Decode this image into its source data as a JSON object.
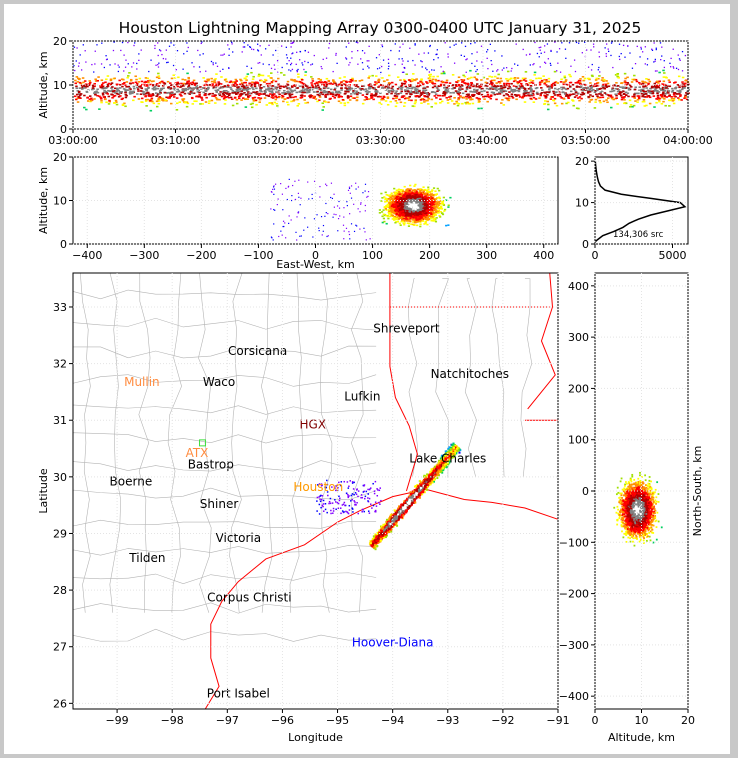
{
  "title": "Houston Lightning Mapping Array 0300-0400 UTC January 31, 2025",
  "colors": {
    "ramp": [
      "#8000ff",
      "#0000ff",
      "#00a0ff",
      "#00d060",
      "#a0e000",
      "#ffff00",
      "#ff9000",
      "#ff0000",
      "#b00000",
      "#808080",
      "#ffffff"
    ],
    "coast": "#ff0000",
    "county": "#b4b4b4",
    "profile": "#000000"
  },
  "panels": {
    "time_height": {
      "ylabel": "Altitude, km",
      "yticks": [
        "0",
        "10",
        "20"
      ],
      "xticks": [
        "03:00:00",
        "03:10:00",
        "03:20:00",
        "03:30:00",
        "03:40:00",
        "03:50:00",
        "04:00:00"
      ],
      "xlim_minutes": [
        0,
        60
      ],
      "ylim_km": [
        0,
        20
      ]
    },
    "ew_height": {
      "ylabel": "Altitude, km",
      "xlabel": "East-West, km",
      "xticks": [
        "−400",
        "−300",
        "−200",
        "−100",
        "0",
        "100",
        "200",
        "300",
        "400"
      ],
      "yticks": [
        "0",
        "10",
        "20"
      ],
      "xlim_km": [
        -425,
        425
      ],
      "ylim_km": [
        0,
        20
      ]
    },
    "histogram": {
      "xticks": [
        "0",
        "5000"
      ],
      "yticks": [
        "0",
        "10",
        "20"
      ],
      "xlim": [
        0,
        6000
      ],
      "ylim_km": [
        0,
        21
      ],
      "label": "134,306 src"
    },
    "plan": {
      "xlabel": "Longitude",
      "ylabel": "Latitude",
      "xticks": [
        "−99",
        "−98",
        "−97",
        "−96",
        "−95",
        "−94",
        "−93",
        "−92",
        "−91"
      ],
      "yticks": [
        "26",
        "27",
        "28",
        "29",
        "30",
        "31",
        "32",
        "33"
      ],
      "xlim_deg": [
        -99.8,
        -91
      ],
      "ylim_deg": [
        25.9,
        33.6
      ],
      "cities": [
        {
          "name": "Shreveport",
          "lon": -93.75,
          "lat": 32.55,
          "color": "#000000"
        },
        {
          "name": "Corsicana",
          "lon": -96.45,
          "lat": 32.15,
          "color": "#000000"
        },
        {
          "name": "Mullin",
          "lon": -98.55,
          "lat": 31.6,
          "color": "#ff8c40"
        },
        {
          "name": "Waco",
          "lon": -97.15,
          "lat": 31.6,
          "color": "#000000"
        },
        {
          "name": "Natchitoches",
          "lon": -92.6,
          "lat": 31.75,
          "color": "#000000"
        },
        {
          "name": "Lufkin",
          "lon": -94.55,
          "lat": 31.35,
          "color": "#000000"
        },
        {
          "name": "HGX",
          "lon": -95.45,
          "lat": 30.85,
          "color": "#800000"
        },
        {
          "name": "ATX",
          "lon": -97.55,
          "lat": 30.35,
          "color": "#ff8c40"
        },
        {
          "name": "Bastrop",
          "lon": -97.3,
          "lat": 30.15,
          "color": "#000000"
        },
        {
          "name": "Lake Charles",
          "lon": -93.0,
          "lat": 30.25,
          "color": "#000000"
        },
        {
          "name": "Boerne",
          "lon": -98.75,
          "lat": 29.85,
          "color": "#000000"
        },
        {
          "name": "Houston",
          "lon": -95.35,
          "lat": 29.75,
          "color": "#ff9a00"
        },
        {
          "name": "Shiner",
          "lon": -97.15,
          "lat": 29.45,
          "color": "#000000"
        },
        {
          "name": "Victoria",
          "lon": -96.8,
          "lat": 28.85,
          "color": "#000000"
        },
        {
          "name": "Tilden",
          "lon": -98.45,
          "lat": 28.5,
          "color": "#000000"
        },
        {
          "name": "Corpus Christi",
          "lon": -96.6,
          "lat": 27.8,
          "color": "#000000"
        },
        {
          "name": "Hoover-Diana",
          "lon": -94.0,
          "lat": 27.0,
          "color": "#0000ff"
        },
        {
          "name": "Port Isabel",
          "lon": -96.8,
          "lat": 26.1,
          "color": "#000000"
        }
      ]
    },
    "ns_height": {
      "xlabel": "Altitude, km",
      "ylabel": "North-South, km",
      "xticks": [
        "0",
        "10",
        "20"
      ],
      "yticks": [
        "−400",
        "−300",
        "−200",
        "−100",
        "0",
        "100",
        "200",
        "300",
        "400"
      ],
      "xlim_km": [
        0,
        20
      ],
      "ylim_km": [
        -425,
        425
      ]
    }
  },
  "chart_data": {
    "type": "scatter",
    "title": "Houston Lightning Mapping Array 0300-0400 UTC January 31, 2025",
    "source_count": "134,306 src",
    "altitude_histogram": {
      "altitude_km": [
        1,
        2,
        3,
        4,
        5,
        6,
        7,
        8,
        9,
        10,
        11,
        12,
        13,
        14,
        15,
        16,
        17,
        18,
        19,
        20
      ],
      "sources": [
        150,
        500,
        1200,
        1800,
        2200,
        2800,
        3600,
        4700,
        5800,
        5500,
        3600,
        1700,
        650,
        350,
        230,
        160,
        110,
        70,
        40,
        20
      ]
    },
    "storm_band": {
      "lon_start": -94.4,
      "lat_start": 28.8,
      "lon_end": -92.85,
      "lat_end": 30.55,
      "core_lon": -93.75,
      "core_lat": 29.45
    },
    "ew_cluster": {
      "center_km": 170,
      "width_km": 190,
      "core_altitude_km": 9
    },
    "ns_cluster": {
      "center_km": -35,
      "height_km": 220,
      "core_altitude_km": 9
    },
    "time_band": {
      "altitude_range_km": [
        3,
        14
      ],
      "core_altitude_km": [
        7,
        11
      ]
    }
  }
}
